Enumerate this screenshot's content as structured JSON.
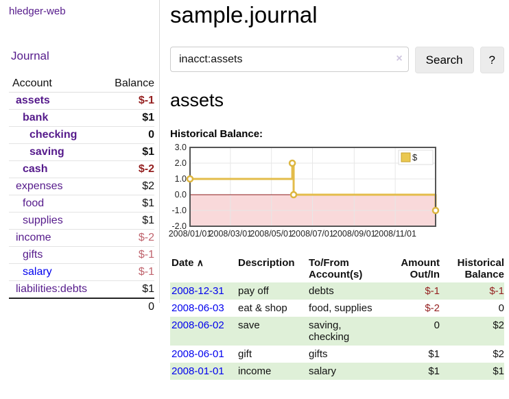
{
  "app": {
    "brand": "hledger-web"
  },
  "sidebar": {
    "nav_journal": "Journal",
    "accounts_table": {
      "col_account": "Account",
      "col_balance": "Balance",
      "rows": [
        {
          "name": "assets",
          "balance": "$-1",
          "level": 1,
          "bold": true,
          "name_color": "purple",
          "balance_tone": "neg"
        },
        {
          "name": "bank",
          "balance": "$1",
          "level": 2,
          "bold": true,
          "name_color": "purple",
          "balance_tone": "pos"
        },
        {
          "name": "checking",
          "balance": "0",
          "level": 3,
          "bold": true,
          "name_color": "purple",
          "balance_tone": "pos"
        },
        {
          "name": "saving",
          "balance": "$1",
          "level": 3,
          "bold": true,
          "name_color": "purple",
          "balance_tone": "pos"
        },
        {
          "name": "cash",
          "balance": "$-2",
          "level": 2,
          "bold": true,
          "name_color": "purple",
          "balance_tone": "neg"
        },
        {
          "name": "expenses",
          "balance": "$2",
          "level": 1,
          "bold": false,
          "name_color": "purple",
          "balance_tone": "pos"
        },
        {
          "name": "food",
          "balance": "$1",
          "level": 2,
          "bold": false,
          "name_color": "purple",
          "balance_tone": "pos"
        },
        {
          "name": "supplies",
          "balance": "$1",
          "level": 2,
          "bold": false,
          "name_color": "purple",
          "balance_tone": "pos"
        },
        {
          "name": "income",
          "balance": "$-2",
          "level": 1,
          "bold": false,
          "name_color": "purple",
          "balance_tone": "neglight"
        },
        {
          "name": "gifts",
          "balance": "$-1",
          "level": 2,
          "bold": false,
          "name_color": "purple",
          "balance_tone": "neglight"
        },
        {
          "name": "salary",
          "balance": "$-1",
          "level": 2,
          "bold": false,
          "name_color": "blue",
          "balance_tone": "neglight"
        },
        {
          "name": "liabilities:debts",
          "balance": "$1",
          "level": 1,
          "bold": false,
          "name_color": "purple",
          "balance_tone": "pos"
        }
      ],
      "total": "0"
    }
  },
  "header": {
    "title": "sample.journal"
  },
  "search": {
    "value": "inacct:assets",
    "clear_icon": "×",
    "button_label": "Search",
    "help_label": "?"
  },
  "account_page": {
    "title": "assets",
    "chart_label": "Historical Balance:"
  },
  "chart_data": {
    "type": "line",
    "subtype": "step",
    "title": "Historical Balance",
    "series": [
      {
        "name": "$",
        "color": "#e3bc4a",
        "points": [
          {
            "x": "2008-01-01",
            "day": 0,
            "y": 1.0
          },
          {
            "x": "2008-06-01",
            "day": 152,
            "y": 2.0
          },
          {
            "x": "2008-06-03",
            "day": 154,
            "y": 0.0
          },
          {
            "x": "2008-12-31",
            "day": 365,
            "y": -1.0
          }
        ]
      }
    ],
    "x_ticks": [
      {
        "label": "2008/01/01",
        "day": 0
      },
      {
        "label": "2008/03/01",
        "day": 60
      },
      {
        "label": "2008/05/01",
        "day": 121
      },
      {
        "label": "2008/07/01",
        "day": 182
      },
      {
        "label": "2008/09/01",
        "day": 244
      },
      {
        "label": "2008/11/01",
        "day": 305
      }
    ],
    "y_ticks": [
      3.0,
      2.0,
      1.0,
      0.0,
      -1.0,
      -2.0
    ],
    "ylim": [
      -2.0,
      3.0
    ],
    "xlim_days": [
      0,
      365
    ],
    "grid": true,
    "legend_position": "top-right",
    "negative_region_fill": "#f9d9da",
    "zero_line_color": "#8b1a1a"
  },
  "register": {
    "columns": {
      "date": "Date",
      "sort_indicator": "∧",
      "description": "Description",
      "accounts": "To/From Account(s)",
      "amount": "Amount Out/In",
      "balance": "Historical Balance"
    },
    "rows": [
      {
        "date": "2008-12-31",
        "description": "pay off",
        "accounts": "debts",
        "amount": "$-1",
        "balance": "$-1",
        "amount_tone": "neg",
        "balance_tone": "neg"
      },
      {
        "date": "2008-06-03",
        "description": "eat & shop",
        "accounts": "food, supplies",
        "amount": "$-2",
        "balance": "0",
        "amount_tone": "neg",
        "balance_tone": "pos"
      },
      {
        "date": "2008-06-02",
        "description": "save",
        "accounts": "saving, checking",
        "amount": "0",
        "balance": "$2",
        "amount_tone": "pos",
        "balance_tone": "pos"
      },
      {
        "date": "2008-06-01",
        "description": "gift",
        "accounts": "gifts",
        "amount": "$1",
        "balance": "$2",
        "amount_tone": "pos",
        "balance_tone": "pos"
      },
      {
        "date": "2008-01-01",
        "description": "income",
        "accounts": "salary",
        "amount": "$1",
        "balance": "$1",
        "amount_tone": "pos",
        "balance_tone": "pos"
      }
    ]
  },
  "colors": {
    "link_purple": "#551a8b",
    "link_blue": "#0000ee",
    "negative": "#941f1f",
    "negative_light": "#c0646e",
    "row_stripe_green": "#dff0d8",
    "chart_gold": "#e3bc4a",
    "chart_negative_region": "#f9d9da",
    "chart_zero_line": "#8b1a1a"
  }
}
